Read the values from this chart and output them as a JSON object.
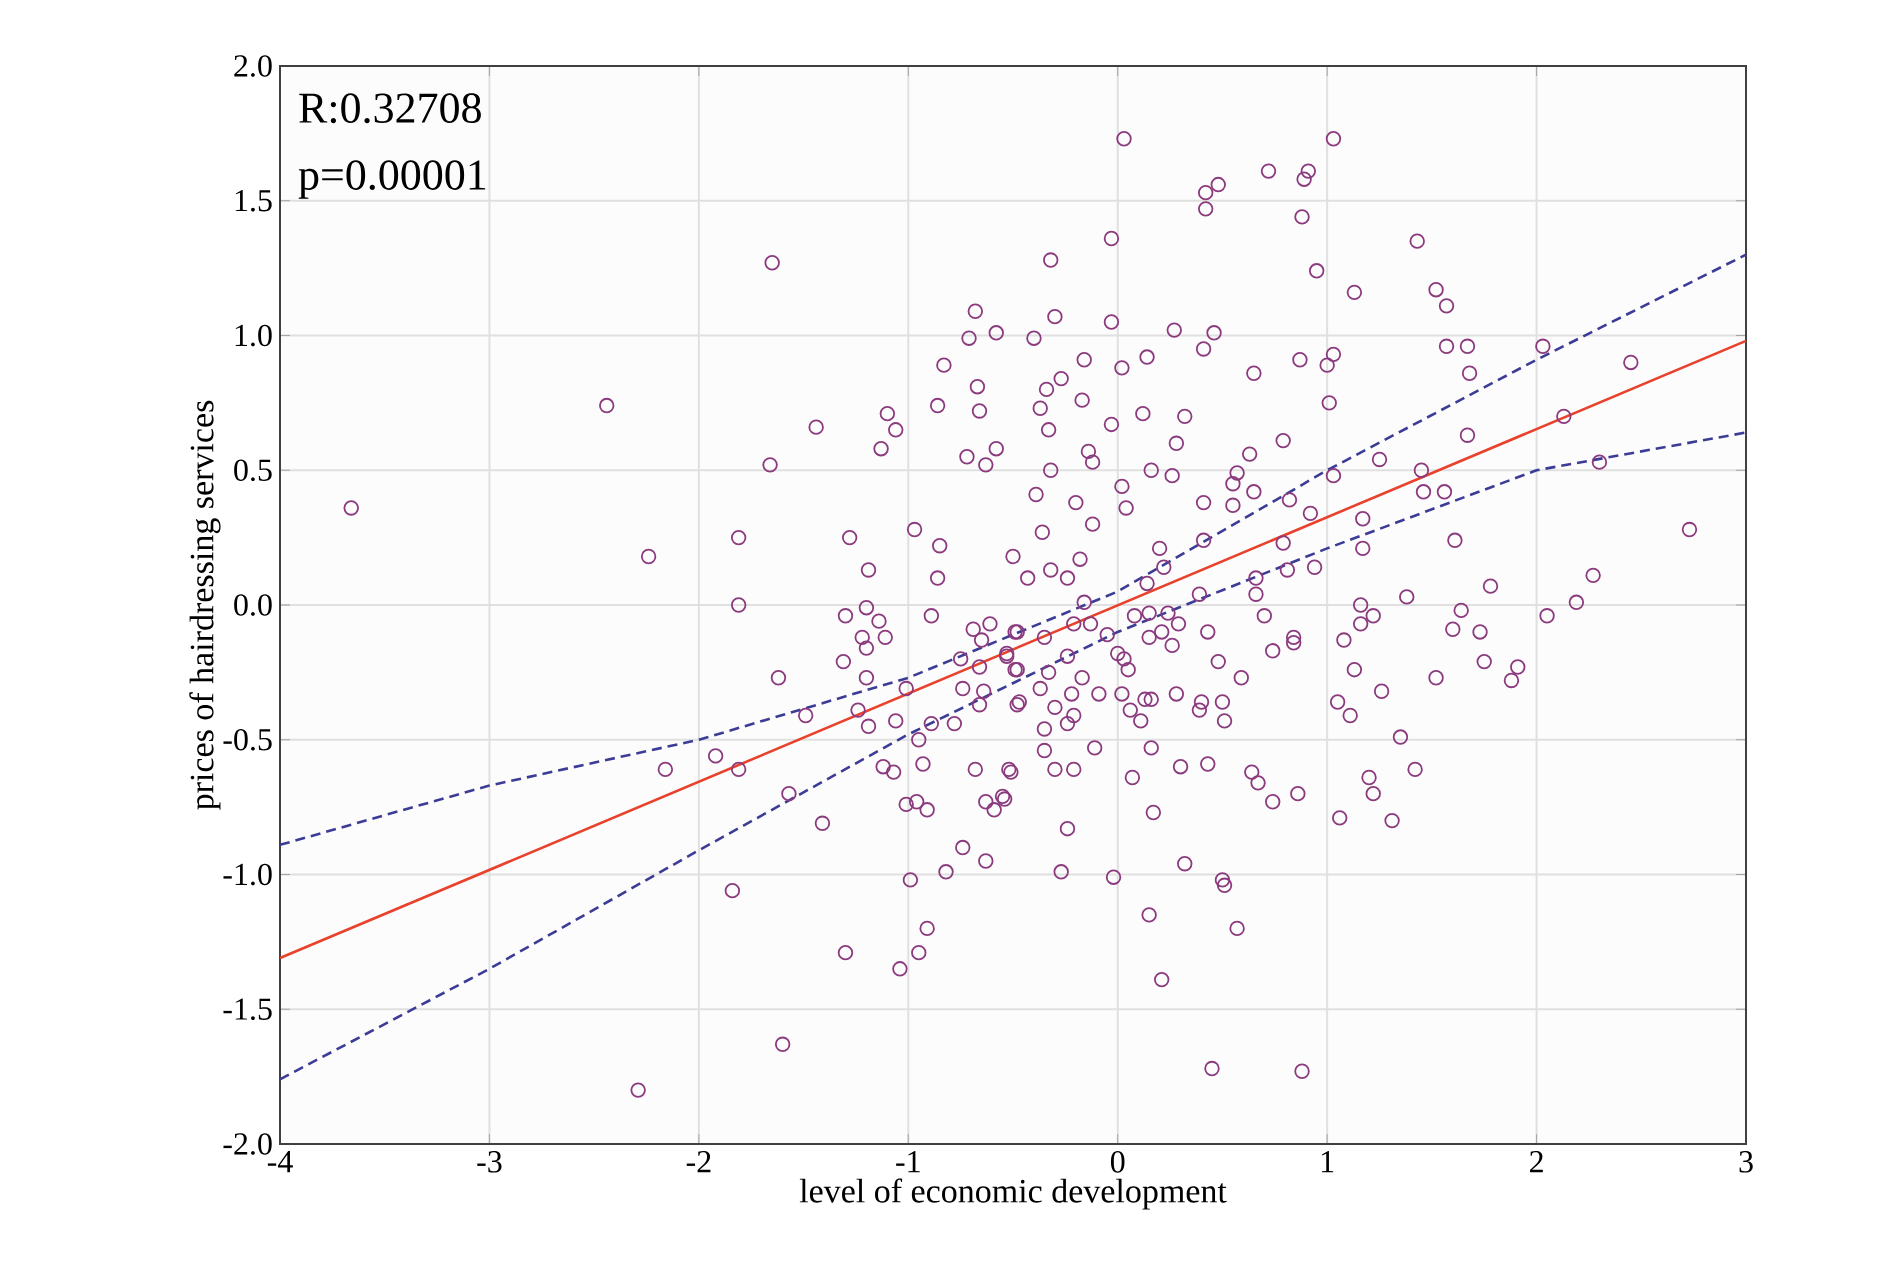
{
  "chart_data": {
    "type": "scatter",
    "xlabel": "level of economic development",
    "ylabel": "prices of hairdressing services",
    "annotations": [
      "R:0.32708",
      "p=0.00001"
    ],
    "xlim": [
      -4,
      3
    ],
    "xticks": [
      -4,
      -3,
      -2,
      -1,
      0,
      1,
      2,
      3
    ],
    "ylim": [
      -2,
      2
    ],
    "yticks": [
      {
        "value": -2,
        "label": "-2.0"
      },
      {
        "value": -1.5,
        "label": "-1.5"
      },
      {
        "value": -1,
        "label": "-1.0"
      },
      {
        "value": -0.5,
        "label": "-0.5"
      },
      {
        "value": 0,
        "label": "0.0"
      },
      {
        "value": 0.5,
        "label": "0.5"
      },
      {
        "value": 1,
        "label": "1.0"
      },
      {
        "value": 1.5,
        "label": "1.5"
      },
      {
        "value": 2,
        "label": "2.0"
      }
    ],
    "grid": true,
    "series": [
      {
        "color": "#8b3a7e",
        "marker": "circle",
        "x": [
          -1.65,
          -2.44,
          -1.44,
          -1.66,
          -3.66,
          -2.24,
          -1.81,
          -1.28,
          -1.19,
          -0.97,
          -0.86,
          -0.85,
          -0.68,
          -0.71,
          -0.58,
          -0.83,
          -0.67,
          -0.86,
          -0.66,
          -1.1,
          -1.06,
          -1.13,
          -0.72,
          -0.58,
          -0.63,
          0.03,
          1.03,
          0.72,
          0.91,
          0.89,
          0.42,
          0.48,
          0.42,
          0.88,
          -0.03,
          1.43,
          -0.32,
          0.95,
          1.13,
          1.52,
          1.57,
          -0.3,
          -0.03,
          0.27,
          0.46,
          -0.4,
          0.41,
          1.57,
          1.67,
          2.03,
          0.87,
          1.03,
          1.0,
          2.45,
          -0.16,
          0.14,
          0.02,
          0.65,
          1.68,
          -0.27,
          -0.34,
          -0.17,
          -0.37,
          1.01,
          0.12,
          0.32,
          -0.03,
          -0.33,
          2.13,
          1.67,
          0.28,
          0.79,
          -0.14,
          0.63,
          1.25,
          -0.12,
          2.3,
          -0.32,
          0.16,
          0.26,
          1.03,
          0.57,
          1.45,
          0.02,
          0.55,
          0.65,
          1.46,
          1.56,
          -0.39,
          -0.2,
          0.04,
          0.41,
          0.55,
          0.82,
          0.92,
          1.17,
          -0.36,
          -0.12,
          0.79,
          1.61,
          2.73,
          -0.5,
          0.2,
          0.41,
          1.17,
          -0.18,
          -0.32,
          -0.24,
          -0.43,
          0.22,
          0.81,
          0.94,
          1.78,
          2.27,
          0.66,
          0.14,
          -1.81,
          -1.3,
          -1.2,
          -0.89,
          -1.14,
          -1.11,
          -1.22,
          -1.2,
          -0.69,
          -0.61,
          -0.65,
          -0.49,
          -1.62,
          -1.31,
          -1.2,
          -1.01,
          -0.75,
          -0.66,
          -0.74,
          -0.64,
          -0.66,
          -0.53,
          -0.48,
          -0.48,
          -1.49,
          -1.24,
          -1.19,
          -1.06,
          -0.89,
          -0.78,
          -0.95,
          -2.16,
          -1.92,
          -1.81,
          -1.57,
          -1.12,
          -1.07,
          -0.93,
          -0.68,
          -0.52,
          -1.41,
          -1.01,
          -0.96,
          -0.91,
          -0.63,
          -0.55,
          -0.59,
          -0.74,
          -0.63,
          -0.82,
          -0.99,
          -1.84,
          -0.91,
          -1.3,
          -0.95,
          -1.04,
          -1.6,
          -2.29,
          2.19,
          2.05,
          1.64,
          1.6,
          1.73,
          1.38,
          1.16,
          1.22,
          1.16,
          1.08,
          1.13,
          1.52,
          1.75,
          1.91,
          1.88,
          1.26,
          1.05,
          1.11,
          1.35,
          1.42,
          1.2,
          1.22,
          1.31,
          1.06,
          0.74,
          0.7,
          0.59,
          0.48,
          0.43,
          0.39,
          0.84,
          0.84,
          0.66,
          0.5,
          0.51,
          0.4,
          0.39,
          0.28,
          0.16,
          0.13,
          0.11,
          0.06,
          0.02,
          -0.09,
          -0.17,
          -0.22,
          -0.3,
          -0.21,
          -0.24,
          -0.35,
          -0.35,
          -0.11,
          -0.3,
          -0.21,
          -0.51,
          -0.54,
          -0.47,
          -0.37,
          -0.33,
          0.16,
          0.07,
          0.3,
          0.43,
          0.64,
          0.67,
          0.74,
          0.86,
          0.17,
          -0.24,
          -0.27,
          -0.02,
          0.32,
          0.5,
          0.51,
          0.15,
          0.57,
          0.21,
          0.45,
          0.88,
          0.0,
          0.05,
          0.03,
          0.15,
          0.21,
          0.26,
          0.29,
          0.15,
          0.08,
          0.24,
          -0.05,
          -0.13,
          -0.24,
          -0.35,
          -0.49,
          -0.48,
          -0.53,
          -0.16,
          -0.21
        ],
        "values": [
          1.27,
          0.74,
          0.66,
          0.52,
          0.36,
          0.18,
          0.25,
          0.25,
          0.13,
          0.28,
          0.1,
          0.22,
          1.09,
          0.99,
          1.01,
          0.89,
          0.81,
          0.74,
          0.72,
          0.71,
          0.65,
          0.58,
          0.55,
          0.58,
          0.52,
          1.73,
          1.73,
          1.61,
          1.61,
          1.58,
          1.53,
          1.56,
          1.47,
          1.44,
          1.36,
          1.35,
          1.28,
          1.24,
          1.16,
          1.17,
          1.11,
          1.07,
          1.05,
          1.02,
          1.01,
          0.99,
          0.95,
          0.96,
          0.96,
          0.96,
          0.91,
          0.93,
          0.89,
          0.9,
          0.91,
          0.92,
          0.88,
          0.86,
          0.86,
          0.84,
          0.8,
          0.76,
          0.73,
          0.75,
          0.71,
          0.7,
          0.67,
          0.65,
          0.7,
          0.63,
          0.6,
          0.61,
          0.57,
          0.56,
          0.54,
          0.53,
          0.53,
          0.5,
          0.5,
          0.48,
          0.48,
          0.49,
          0.5,
          0.44,
          0.45,
          0.42,
          0.42,
          0.42,
          0.41,
          0.38,
          0.36,
          0.38,
          0.37,
          0.39,
          0.34,
          0.32,
          0.27,
          0.3,
          0.23,
          0.24,
          0.28,
          0.18,
          0.21,
          0.24,
          0.21,
          0.17,
          0.13,
          0.1,
          0.1,
          0.14,
          0.13,
          0.14,
          0.07,
          0.11,
          0.1,
          0.08,
          0.0,
          -0.04,
          -0.01,
          -0.04,
          -0.06,
          -0.12,
          -0.12,
          -0.16,
          -0.09,
          -0.07,
          -0.13,
          -0.1,
          -0.27,
          -0.21,
          -0.27,
          -0.31,
          -0.2,
          -0.23,
          -0.31,
          -0.32,
          -0.37,
          -0.19,
          -0.24,
          -0.37,
          -0.41,
          -0.39,
          -0.45,
          -0.43,
          -0.44,
          -0.44,
          -0.5,
          -0.61,
          -0.56,
          -0.61,
          -0.7,
          -0.6,
          -0.62,
          -0.59,
          -0.61,
          -0.61,
          -0.81,
          -0.74,
          -0.73,
          -0.76,
          -0.73,
          -0.71,
          -0.76,
          -0.9,
          -0.95,
          -0.99,
          -1.02,
          -1.06,
          -1.2,
          -1.29,
          -1.29,
          -1.35,
          -1.63,
          -1.8,
          0.01,
          -0.04,
          -0.02,
          -0.09,
          -0.1,
          0.03,
          0.0,
          -0.04,
          -0.07,
          -0.13,
          -0.24,
          -0.27,
          -0.21,
          -0.23,
          -0.28,
          -0.32,
          -0.36,
          -0.41,
          -0.49,
          -0.61,
          -0.64,
          -0.7,
          -0.8,
          -0.79,
          -0.17,
          -0.04,
          -0.27,
          -0.21,
          -0.1,
          0.04,
          -0.12,
          -0.14,
          0.04,
          -0.36,
          -0.43,
          -0.36,
          -0.39,
          -0.33,
          -0.35,
          -0.35,
          -0.43,
          -0.39,
          -0.33,
          -0.33,
          -0.27,
          -0.33,
          -0.38,
          -0.41,
          -0.44,
          -0.46,
          -0.54,
          -0.53,
          -0.61,
          -0.61,
          -0.62,
          -0.72,
          -0.36,
          -0.31,
          -0.25,
          -0.53,
          -0.64,
          -0.6,
          -0.59,
          -0.62,
          -0.66,
          -0.73,
          -0.7,
          -0.77,
          -0.83,
          -0.99,
          -1.01,
          -0.96,
          -1.02,
          -1.04,
          -1.15,
          -1.2,
          -1.39,
          -1.72,
          -1.73,
          -0.18,
          -0.24,
          -0.2,
          -0.12,
          -0.1,
          -0.15,
          -0.07,
          -0.03,
          -0.04,
          -0.03,
          -0.11,
          -0.07,
          -0.19,
          -0.12,
          -0.24,
          -0.1,
          -0.18,
          0.01,
          -0.07
        ]
      },
      {
        "type": "line",
        "color": "#e8412c",
        "marker": "none",
        "line_style": "solid",
        "x": [
          -4,
          3
        ],
        "values": [
          -1.31,
          0.98
        ]
      },
      {
        "type": "line",
        "color": "#3c3c96",
        "marker": "none",
        "line_style": "dashed",
        "x": [
          -4,
          -3,
          -2,
          -1,
          0,
          1,
          2,
          3
        ],
        "values": [
          -0.89,
          -0.67,
          -0.5,
          -0.27,
          0.05,
          0.5,
          0.91,
          1.3
        ]
      },
      {
        "type": "line",
        "color": "#3c3c96",
        "marker": "none",
        "line_style": "dashed",
        "x": [
          -4,
          -3,
          -2,
          -1,
          0,
          1,
          2,
          3
        ],
        "values": [
          -1.76,
          -1.35,
          -0.91,
          -0.48,
          -0.1,
          0.21,
          0.5,
          0.64
        ]
      }
    ]
  }
}
